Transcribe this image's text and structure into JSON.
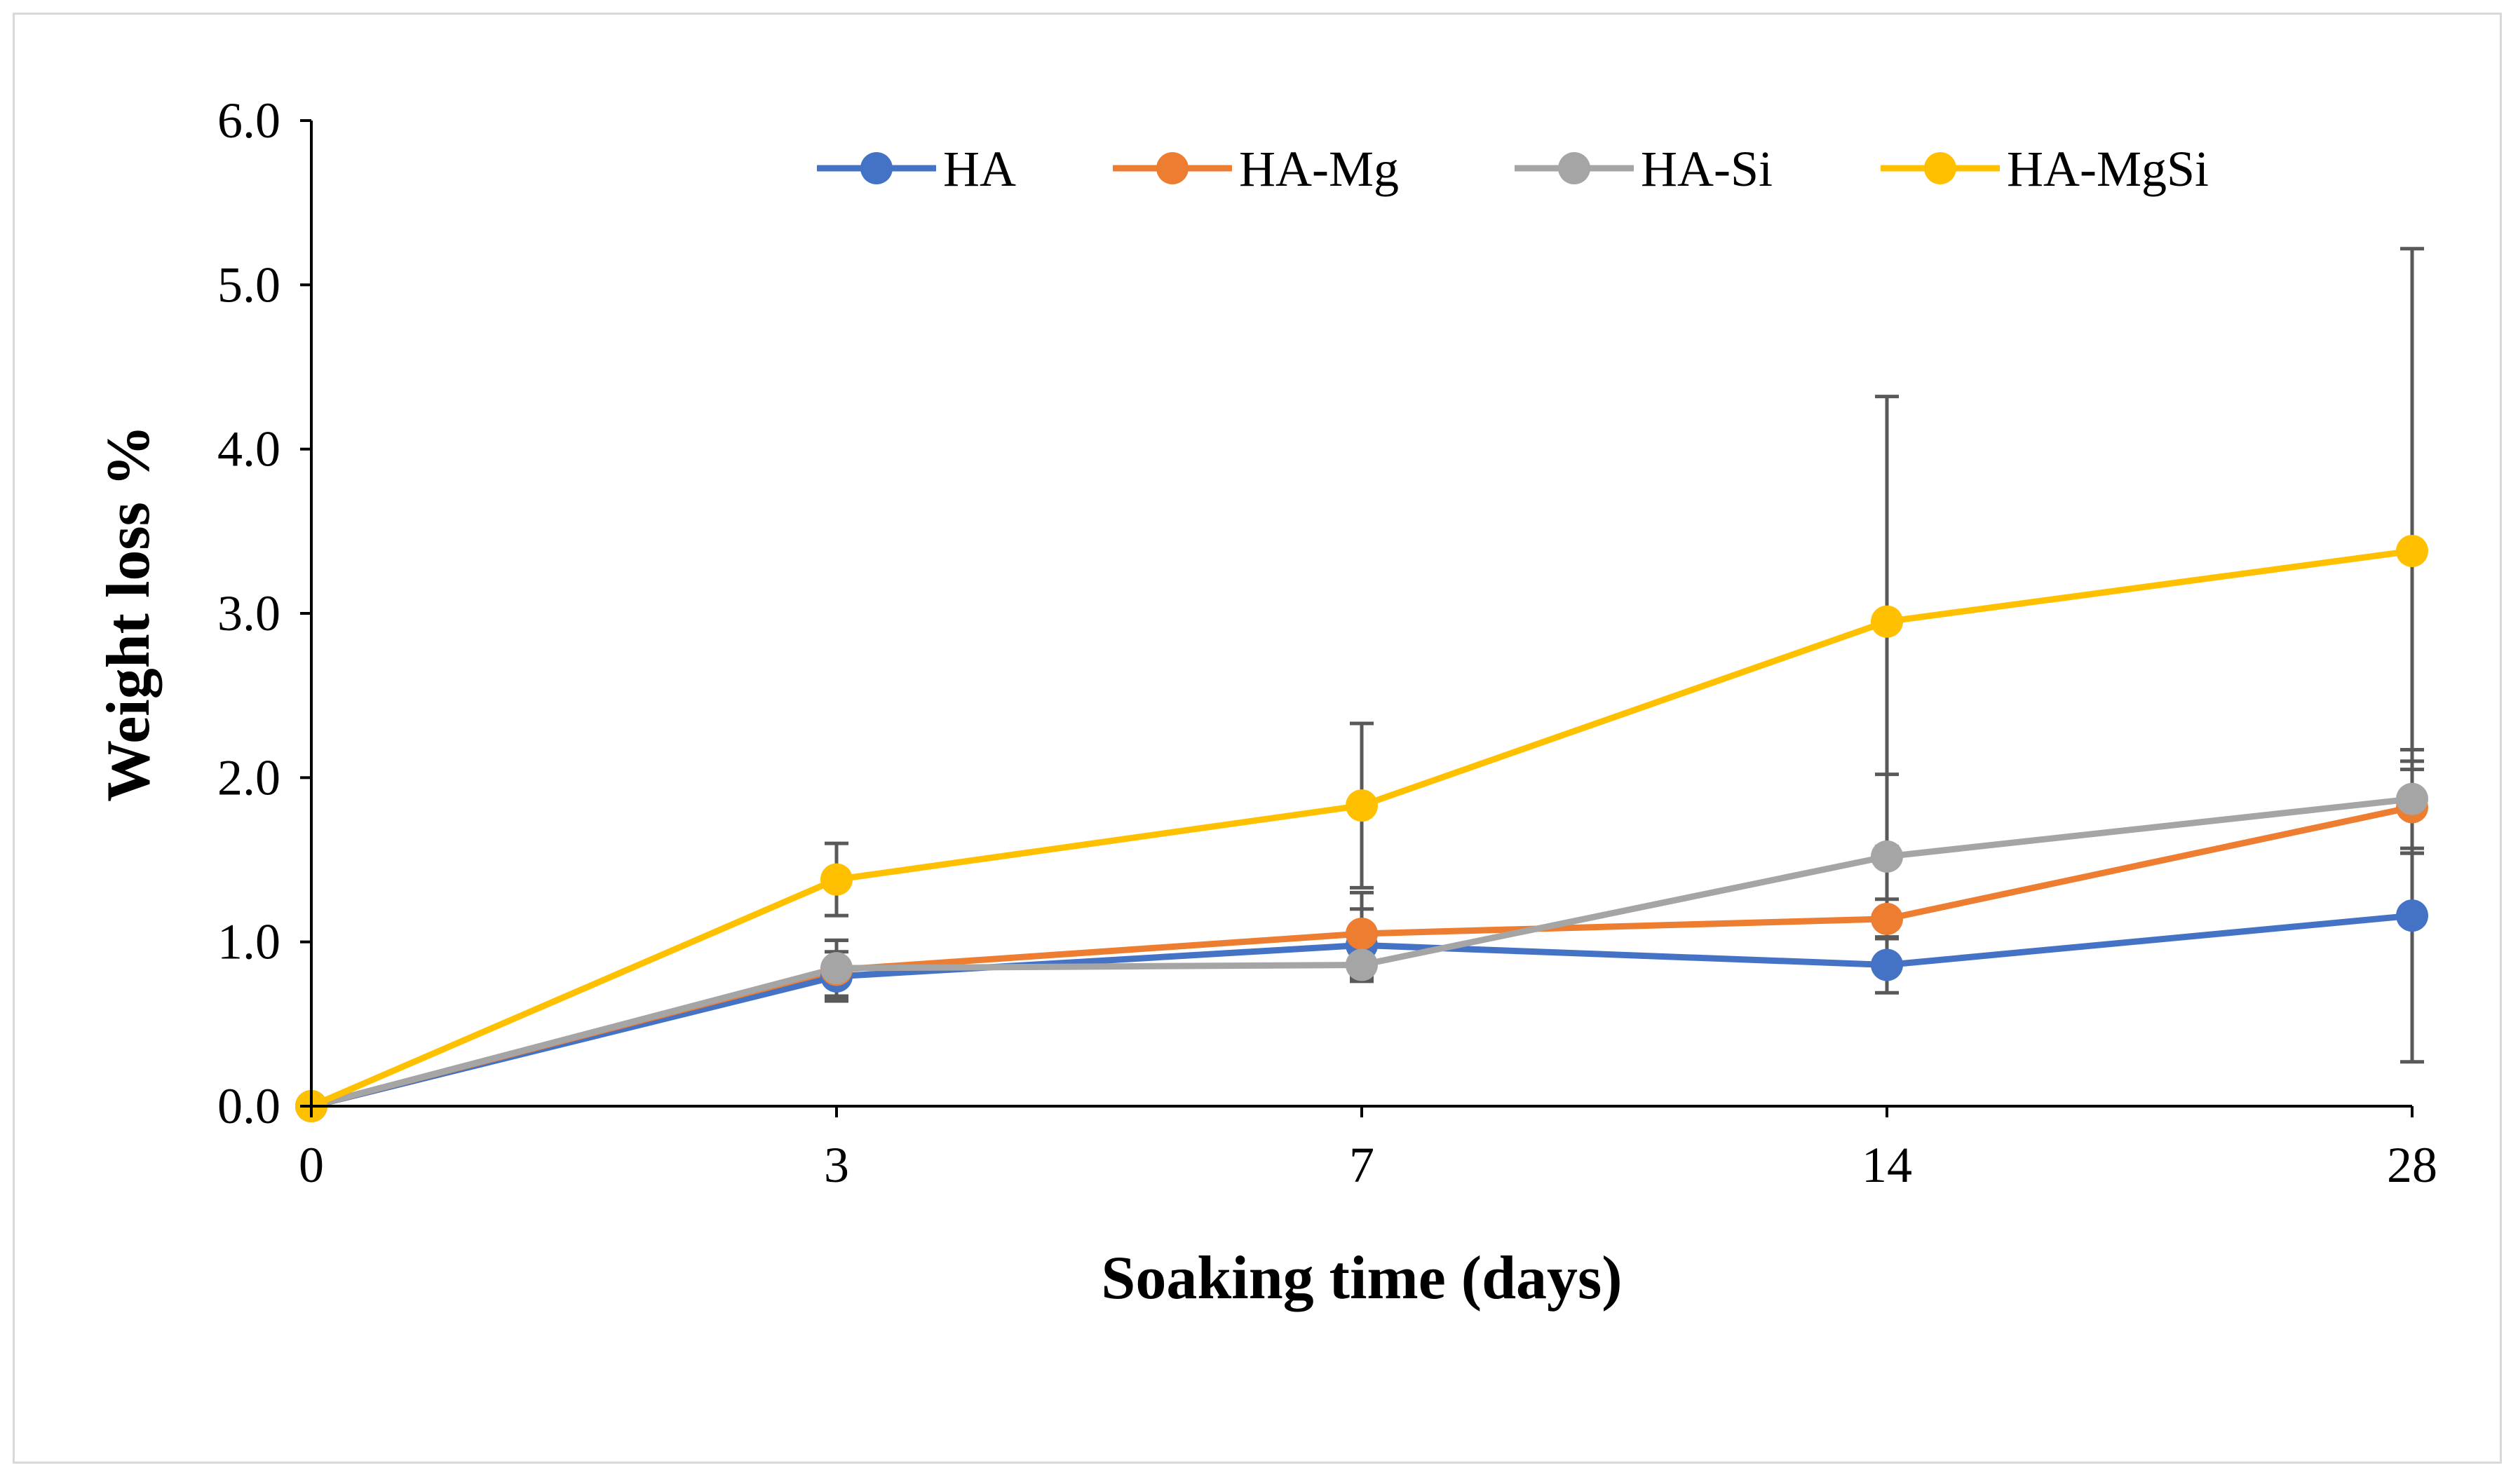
{
  "chart_data": {
    "type": "line",
    "title": "",
    "xlabel": "Soaking time (days)",
    "ylabel": "Weight  loss %",
    "categories": [
      "0",
      "3",
      "7",
      "14",
      "28"
    ],
    "ylim": [
      0,
      6
    ],
    "yticks": [
      "0.0",
      "1.0",
      "2.0",
      "3.0",
      "4.0",
      "5.0",
      "6.0"
    ],
    "legend_position": "top",
    "grid": false,
    "error_bar_color": "#595959",
    "series": [
      {
        "name": "HA",
        "color": "#4472C4",
        "values": [
          0,
          0.79,
          0.98,
          0.86,
          1.16
        ],
        "errors": [
          0,
          0.15,
          0.22,
          0.17,
          0.89
        ]
      },
      {
        "name": "HA-Mg",
        "color": "#ED7D31",
        "values": [
          0,
          0.83,
          1.05,
          1.14,
          1.82
        ],
        "errors": [
          0,
          0.18,
          0.25,
          0.12,
          0.28
        ]
      },
      {
        "name": "HA-Si",
        "color": "#A5A5A5",
        "values": [
          0,
          0.84,
          0.86,
          1.52,
          1.87
        ],
        "errors": [
          0,
          0.17,
          0.08,
          0.5,
          0.3
        ]
      },
      {
        "name": "HA-MgSi",
        "color": "#FFC000",
        "values": [
          0,
          1.38,
          1.83,
          2.95,
          3.38
        ],
        "errors": [
          0,
          0.22,
          0.5,
          1.37,
          1.84
        ]
      }
    ]
  }
}
